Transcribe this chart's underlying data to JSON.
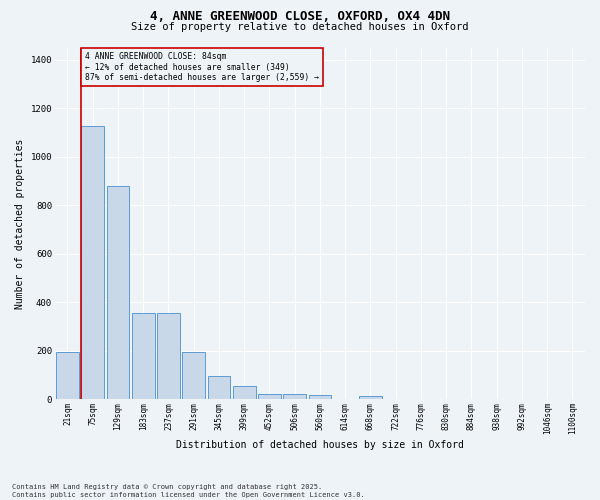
{
  "title_line1": "4, ANNE GREENWOOD CLOSE, OXFORD, OX4 4DN",
  "title_line2": "Size of property relative to detached houses in Oxford",
  "xlabel": "Distribution of detached houses by size in Oxford",
  "ylabel": "Number of detached properties",
  "categories": [
    "21sqm",
    "75sqm",
    "129sqm",
    "183sqm",
    "237sqm",
    "291sqm",
    "345sqm",
    "399sqm",
    "452sqm",
    "506sqm",
    "560sqm",
    "614sqm",
    "668sqm",
    "722sqm",
    "776sqm",
    "830sqm",
    "884sqm",
    "938sqm",
    "992sqm",
    "1046sqm",
    "1100sqm"
  ],
  "values": [
    195,
    1125,
    880,
    355,
    355,
    195,
    95,
    55,
    22,
    22,
    18,
    0,
    12,
    0,
    0,
    0,
    0,
    0,
    0,
    0,
    0
  ],
  "bar_color": "#c8d8e8",
  "bar_edge_color": "#5b9bd5",
  "annotation_text": "4 ANNE GREENWOOD CLOSE: 84sqm\n← 12% of detached houses are smaller (349)\n87% of semi-detached houses are larger (2,559) →",
  "vline_color": "#cc0000",
  "annotation_box_edge": "#cc0000",
  "background_color": "#eef3f8",
  "grid_color": "#ffffff",
  "ylim": [
    0,
    1450
  ],
  "yticks": [
    0,
    200,
    400,
    600,
    800,
    1000,
    1200,
    1400
  ],
  "footer_line1": "Contains HM Land Registry data © Crown copyright and database right 2025.",
  "footer_line2": "Contains public sector information licensed under the Open Government Licence v3.0."
}
